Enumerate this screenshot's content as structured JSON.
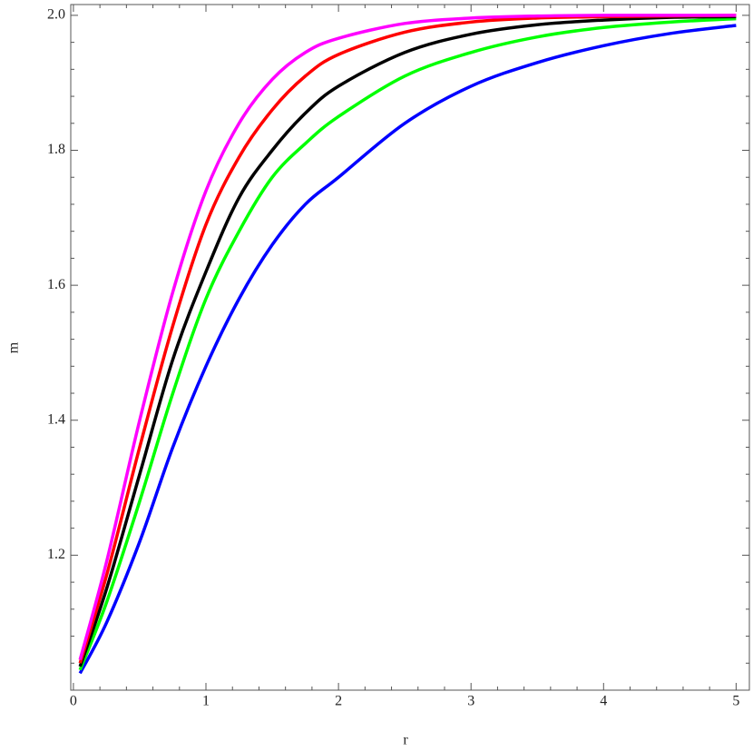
{
  "chart_data": {
    "type": "line",
    "x_label": "r",
    "y_label": "m",
    "x": [
      0.05,
      0.25,
      0.5,
      0.75,
      1,
      1.25,
      1.5,
      1.75,
      2,
      2.5,
      3,
      3.5,
      4,
      4.5,
      5
    ],
    "series": [
      {
        "color": "#0000ff",
        "values": [
          1.025,
          1.1,
          1.22,
          1.36,
          1.48,
          1.58,
          1.66,
          1.72,
          1.76,
          1.84,
          1.895,
          1.93,
          1.955,
          1.973,
          1.985
        ]
      },
      {
        "color": "#00ff00",
        "values": [
          1.03,
          1.13,
          1.28,
          1.44,
          1.58,
          1.68,
          1.76,
          1.81,
          1.85,
          1.91,
          1.945,
          1.968,
          1.982,
          1.99,
          1.995
        ]
      },
      {
        "color": "#000000",
        "values": [
          1.035,
          1.15,
          1.32,
          1.49,
          1.62,
          1.73,
          1.8,
          1.855,
          1.895,
          1.945,
          1.972,
          1.986,
          1.993,
          1.997,
          1.998
        ]
      },
      {
        "color": "#ff0000",
        "values": [
          1.04,
          1.17,
          1.36,
          1.54,
          1.69,
          1.79,
          1.86,
          1.91,
          1.942,
          1.975,
          1.99,
          1.996,
          1.998,
          1.999,
          2.0
        ]
      },
      {
        "color": "#ff00ff",
        "values": [
          1.045,
          1.19,
          1.4,
          1.59,
          1.74,
          1.84,
          1.905,
          1.945,
          1.966,
          1.988,
          1.996,
          1.999,
          2.0,
          2.0,
          2.0
        ]
      }
    ],
    "xlim": [
      -0.02,
      5.1
    ],
    "ylim": [
      1.0,
      2.016
    ],
    "xticks": [
      0,
      1,
      2,
      3,
      4,
      5
    ],
    "yticks": [
      {
        "value": 1.2,
        "label": "1.2"
      },
      {
        "value": 1.4,
        "label": "1.4"
      },
      {
        "value": 1.6,
        "label": "1.6"
      },
      {
        "value": 1.8,
        "label": "1.8"
      },
      {
        "value": 2,
        "label": "2.0"
      }
    ]
  }
}
